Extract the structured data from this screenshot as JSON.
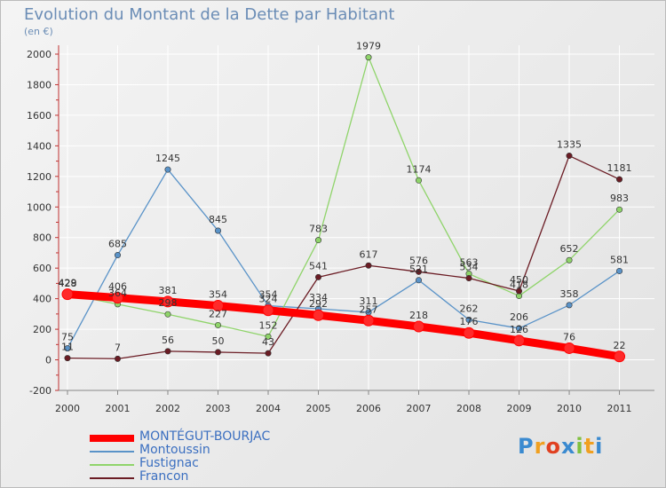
{
  "chart_data": {
    "type": "line",
    "title": "Evolution du Montant de la Dette par Habitant",
    "ylabel": "(en €)",
    "categories": [
      "2000",
      "2001",
      "2002",
      "2003",
      "2004",
      "2005",
      "2006",
      "2007",
      "2008",
      "2009",
      "2010",
      "2011"
    ],
    "ylim": [
      -200,
      2000
    ],
    "yticks": [
      -200,
      0,
      200,
      400,
      600,
      800,
      1000,
      1200,
      1400,
      1600,
      1800,
      2000
    ],
    "series": [
      {
        "name": "MONTÉGUT-BOURJAC",
        "color": "#ff0000",
        "values": [
          429,
          406,
          381,
          354,
          324,
          292,
          257,
          218,
          176,
          126,
          76,
          22
        ]
      },
      {
        "name": "Montoussin",
        "color": "#5a93c8",
        "values": [
          75,
          685,
          1245,
          845,
          354,
          334,
          311,
          521,
          262,
          206,
          358,
          581
        ]
      },
      {
        "name": "Fustignac",
        "color": "#8fd46a",
        "values": [
          428,
          364,
          298,
          227,
          152,
          783,
          1979,
          1174,
          563,
          418,
          652,
          983
        ]
      },
      {
        "name": "Francon",
        "color": "#6b1c24",
        "values": [
          11,
          7,
          56,
          50,
          43,
          541,
          617,
          576,
          534,
          450,
          1335,
          1181
        ]
      }
    ],
    "data_labels": [
      [
        "429",
        "406",
        "381",
        "354",
        "324",
        "292",
        "257",
        "218",
        "176",
        "126",
        "76",
        "22"
      ],
      [
        "75",
        "685",
        "1245",
        "845",
        "354",
        "334",
        "311",
        "521",
        "262",
        "206",
        "358",
        "581"
      ],
      [
        "428",
        "364",
        "298",
        "227",
        "152",
        "783",
        "1979",
        "1174",
        "563",
        "418",
        "652",
        "983"
      ],
      [
        "11",
        "7",
        "56",
        "50",
        "43",
        "541",
        "617",
        "576",
        "534",
        "450",
        "1335",
        "1181"
      ]
    ],
    "legend": "bottom-left"
  },
  "legend_items": [
    {
      "label": "MONTÉGUT-BOURJAC",
      "color": "#ff0000"
    },
    {
      "label": "Montoussin",
      "color": "#5a93c8"
    },
    {
      "label": "Fustignac",
      "color": "#8fd46a"
    },
    {
      "label": "Francon",
      "color": "#6b1c24"
    }
  ],
  "logo": {
    "text": "Proxiti",
    "letters": [
      "P",
      "r",
      "o",
      "x",
      "i",
      "t",
      "i"
    ],
    "colors": [
      "#3a8ad0",
      "#f0a020",
      "#e04020",
      "#3a8ad0",
      "#80c040",
      "#f0a020",
      "#3a8ad0"
    ]
  }
}
